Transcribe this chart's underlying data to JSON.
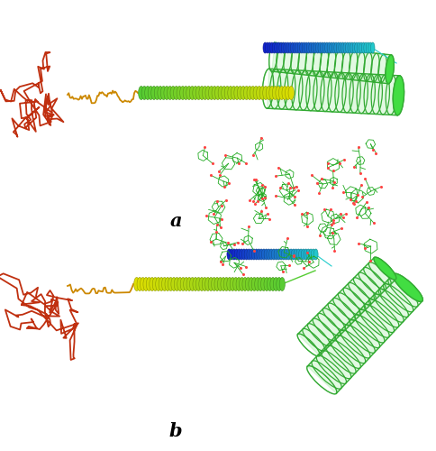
{
  "label_a": "a",
  "label_b": "b",
  "label_fontsize": 15,
  "bg_color": "#ffffff",
  "colors": {
    "red": "#c03010",
    "orange_red": "#cc5500",
    "orange": "#cc8800",
    "yellow": "#dddd00",
    "yellow_green": "#99cc00",
    "green": "#44bb22",
    "lime": "#55cc33",
    "cyan": "#22cccc",
    "blue": "#1122cc",
    "tube_green": "#33aa33",
    "vit_green": "#22aa22"
  },
  "figsize": [
    4.85,
    5.0
  ],
  "dpi": 100
}
